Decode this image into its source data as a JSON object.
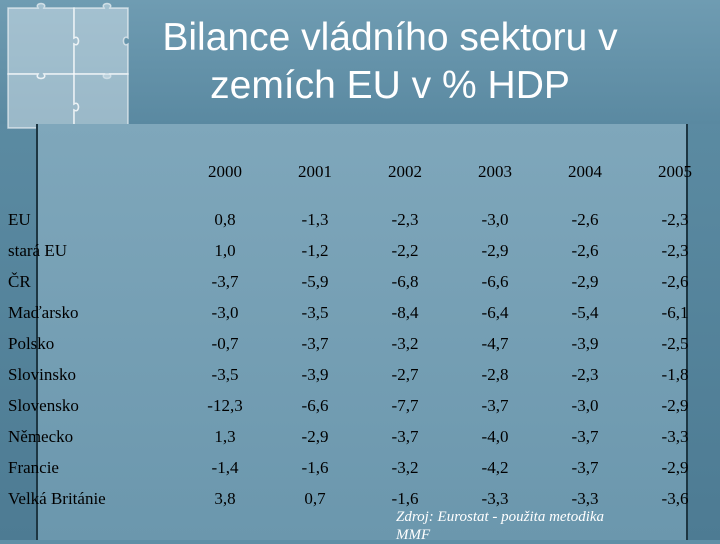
{
  "title": {
    "line1": "Bilance vládního sektoru v",
    "line2": "zemích EU v % HDP"
  },
  "table": {
    "years": [
      "2000",
      "2001",
      "2002",
      "2003",
      "2004",
      "2005"
    ],
    "rows": [
      {
        "country": "EU",
        "values": [
          "0,8",
          "-1,3",
          "-2,3",
          "-3,0",
          "-2,6",
          "-2,3"
        ]
      },
      {
        "country": "stará EU",
        "values": [
          "1,0",
          "-1,2",
          "-2,2",
          "-2,9",
          "-2,6",
          "-2,3"
        ]
      },
      {
        "country": "ČR",
        "values": [
          "-3,7",
          "-5,9",
          "-6,8",
          "-6,6",
          "-2,9",
          "-2,6"
        ]
      },
      {
        "country": "Maďarsko",
        "values": [
          "-3,0",
          "-3,5",
          "-8,4",
          "-6,4",
          "-5,4",
          "-6,1"
        ]
      },
      {
        "country": "Polsko",
        "values": [
          "-0,7",
          "-3,7",
          "-3,2",
          "-4,7",
          "-3,9",
          "-2,5"
        ]
      },
      {
        "country": "Slovinsko",
        "values": [
          "-3,5",
          "-3,9",
          "-2,7",
          "-2,8",
          "-2,3",
          "-1,8"
        ]
      },
      {
        "country": "Slovensko",
        "values": [
          "-12,3",
          "-6,6",
          "-7,7",
          "-3,7",
          "-3,0",
          "-2,9"
        ]
      },
      {
        "country": "Německo",
        "values": [
          "1,3",
          "-2,9",
          "-3,7",
          "-4,0",
          "-3,7",
          "-3,3"
        ]
      },
      {
        "country": "Francie",
        "values": [
          "-1,4",
          "-1,6",
          "-3,2",
          "-4,2",
          "-3,7",
          "-2,9"
        ]
      },
      {
        "country": "Velká Británie",
        "values": [
          "3,8",
          "0,7",
          "-1,6",
          "-3,3",
          "-3,3",
          "-3,6"
        ]
      }
    ]
  },
  "source": {
    "line1": "Zdroj: Eurostat - použita metodika",
    "line2": "MMF"
  }
}
